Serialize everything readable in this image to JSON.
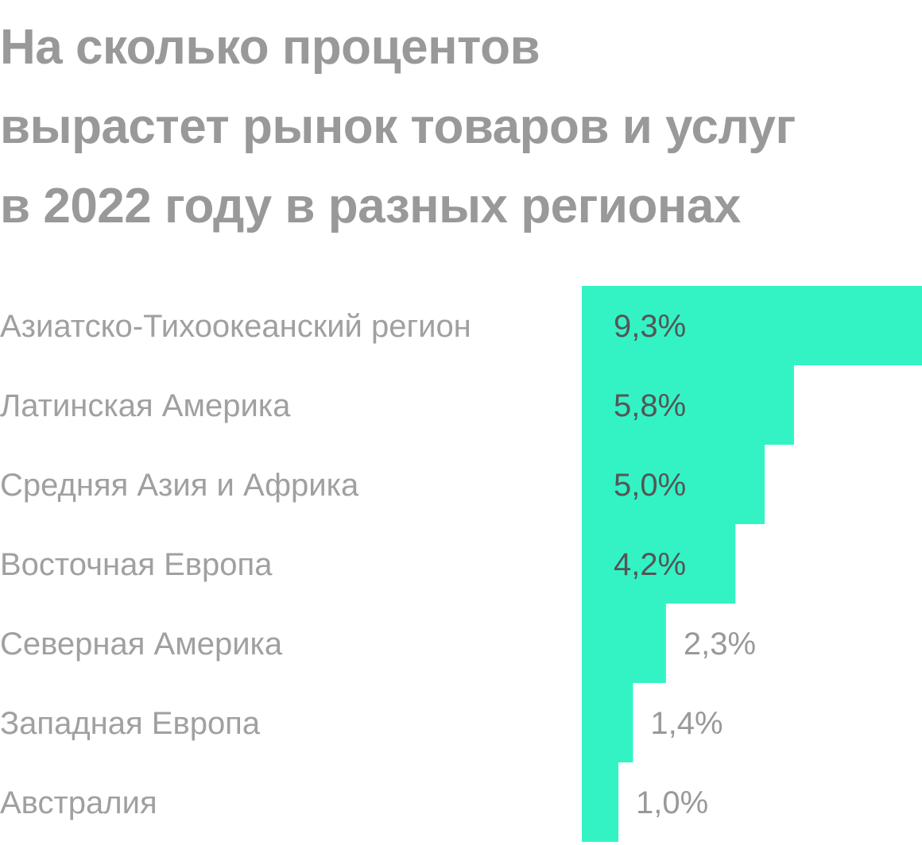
{
  "title_lines": [
    "На сколько процентов",
    "вырастет рынок товаров и услуг",
    "в 2022 году в разных регионах"
  ],
  "chart_data": {
    "type": "bar",
    "orientation": "horizontal",
    "title": "На сколько процентов вырастет рынок товаров и услуг в 2022 году в разных регионах",
    "categories": [
      "Азиатско-Тихоокеанский регион",
      "Латинская Америка",
      "Средняя Азия и Африка",
      "Восточная Европа",
      "Северная Америка",
      "Западная Европа",
      "Австралия"
    ],
    "values": [
      9.3,
      5.8,
      5.0,
      4.2,
      2.3,
      1.4,
      1.0
    ],
    "value_labels": [
      "9,3%",
      "5,8%",
      "5,0%",
      "4,2%",
      "2,3%",
      "1,4%",
      "1,0%"
    ],
    "unit": "%",
    "xlim": [
      0,
      9.3
    ],
    "grid": false,
    "legend": "none",
    "colors": {
      "bar": "#33f3c5",
      "label_inside": "#555555",
      "label_outside": "#999999",
      "category": "#a0a0a0",
      "title": "#999999"
    }
  }
}
